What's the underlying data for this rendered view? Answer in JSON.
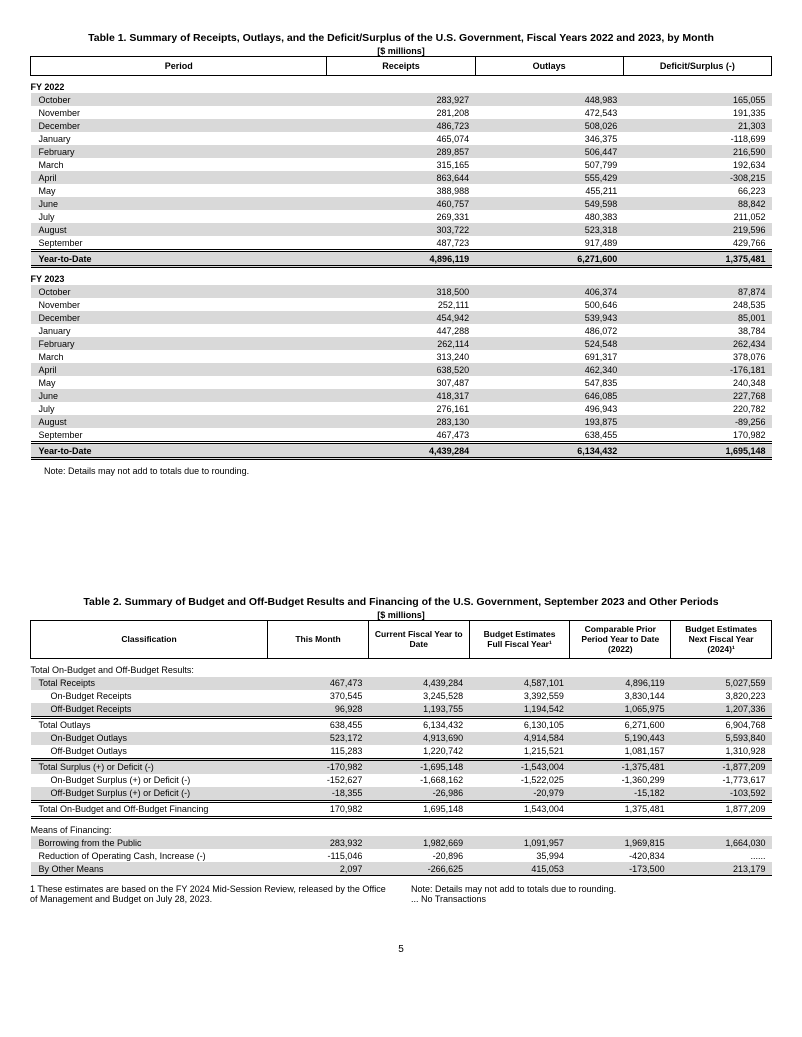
{
  "page_number": "5",
  "table1": {
    "title": "Table 1. Summary of Receipts, Outlays, and the Deficit/Surplus of the U.S. Government, Fiscal Years 2022 and 2023, by Month",
    "units": "[$ millions]",
    "columns": [
      "Period",
      "Receipts",
      "Outlays",
      "Deficit/Surplus (-)"
    ],
    "fy2022_label": "FY 2022",
    "fy2022_rows": [
      {
        "label": "October",
        "r": "283,927",
        "o": "448,983",
        "d": "165,055",
        "shade": true
      },
      {
        "label": "November",
        "r": "281,208",
        "o": "472,543",
        "d": "191,335",
        "shade": false
      },
      {
        "label": "December",
        "r": "486,723",
        "o": "508,026",
        "d": "21,303",
        "shade": true
      },
      {
        "label": "January",
        "r": "465,074",
        "o": "346,375",
        "d": "-118,699",
        "shade": false
      },
      {
        "label": "February",
        "r": "289,857",
        "o": "506,447",
        "d": "216,590",
        "shade": true
      },
      {
        "label": "March",
        "r": "315,165",
        "o": "507,799",
        "d": "192,634",
        "shade": false
      },
      {
        "label": "April",
        "r": "863,644",
        "o": "555,429",
        "d": "-308,215",
        "shade": true
      },
      {
        "label": "May",
        "r": "388,988",
        "o": "455,211",
        "d": "66,223",
        "shade": false
      },
      {
        "label": "June",
        "r": "460,757",
        "o": "549,598",
        "d": "88,842",
        "shade": true
      },
      {
        "label": "July",
        "r": "269,331",
        "o": "480,383",
        "d": "211,052",
        "shade": false
      },
      {
        "label": "August",
        "r": "303,722",
        "o": "523,318",
        "d": "219,596",
        "shade": true
      },
      {
        "label": "September",
        "r": "487,723",
        "o": "917,489",
        "d": "429,766",
        "shade": false
      }
    ],
    "fy2022_ytd": {
      "label": "Year-to-Date",
      "r": "4,896,119",
      "o": "6,271,600",
      "d": "1,375,481"
    },
    "fy2023_label": "FY 2023",
    "fy2023_rows": [
      {
        "label": "October",
        "r": "318,500",
        "o": "406,374",
        "d": "87,874",
        "shade": true
      },
      {
        "label": "November",
        "r": "252,111",
        "o": "500,646",
        "d": "248,535",
        "shade": false
      },
      {
        "label": "December",
        "r": "454,942",
        "o": "539,943",
        "d": "85,001",
        "shade": true
      },
      {
        "label": "January",
        "r": "447,288",
        "o": "486,072",
        "d": "38,784",
        "shade": false
      },
      {
        "label": "February",
        "r": "262,114",
        "o": "524,548",
        "d": "262,434",
        "shade": true
      },
      {
        "label": "March",
        "r": "313,240",
        "o": "691,317",
        "d": "378,076",
        "shade": false
      },
      {
        "label": "April",
        "r": "638,520",
        "o": "462,340",
        "d": "-176,181",
        "shade": true
      },
      {
        "label": "May",
        "r": "307,487",
        "o": "547,835",
        "d": "240,348",
        "shade": false
      },
      {
        "label": "June",
        "r": "418,317",
        "o": "646,085",
        "d": "227,768",
        "shade": true
      },
      {
        "label": "July",
        "r": "276,161",
        "o": "496,943",
        "d": "220,782",
        "shade": false
      },
      {
        "label": "August",
        "r": "283,130",
        "o": "193,875",
        "d": "-89,256",
        "shade": true
      },
      {
        "label": "September",
        "r": "467,473",
        "o": "638,455",
        "d": "170,982",
        "shade": false
      }
    ],
    "fy2023_ytd": {
      "label": "Year-to-Date",
      "r": "4,439,284",
      "o": "6,134,432",
      "d": "1,695,148"
    },
    "note": "Note: Details may not add to totals due to rounding.",
    "col_widths_pct": [
      40,
      20,
      20,
      20
    ],
    "colors": {
      "header_border": "#000000",
      "shade": "#d9d9d9",
      "bg": "#ffffff",
      "text": "#000000"
    }
  },
  "table2": {
    "title": "Table 2. Summary of Budget and Off-Budget Results and Financing of the U.S. Government, September 2023 and Other Periods",
    "units": "[$ millions]",
    "columns": [
      "Classification",
      "This Month",
      "Current Fiscal Year to Date",
      "Budget Estimates Full Fiscal Year¹",
      "Comparable Prior Period Year to Date (2022)",
      "Budget Estimates Next Fiscal Year (2024)¹"
    ],
    "section1_label": "Total On-Budget and Off-Budget Results:",
    "rows_a": [
      {
        "label": "Total Receipts",
        "indent": false,
        "c": [
          "467,473",
          "4,439,284",
          "4,587,101",
          "4,896,119",
          "5,027,559"
        ],
        "shade": true
      },
      {
        "label": "On-Budget Receipts",
        "indent": true,
        "c": [
          "370,545",
          "3,245,528",
          "3,392,559",
          "3,830,144",
          "3,820,223"
        ],
        "shade": false
      },
      {
        "label": "Off-Budget Receipts",
        "indent": true,
        "c": [
          "96,928",
          "1,193,755",
          "1,194,542",
          "1,065,975",
          "1,207,336"
        ],
        "shade": true
      }
    ],
    "rows_b": [
      {
        "label": "Total Outlays",
        "indent": false,
        "c": [
          "638,455",
          "6,134,432",
          "6,130,105",
          "6,271,600",
          "6,904,768"
        ],
        "shade": false
      },
      {
        "label": "On-Budget Outlays",
        "indent": true,
        "c": [
          "523,172",
          "4,913,690",
          "4,914,584",
          "5,190,443",
          "5,593,840"
        ],
        "shade": true
      },
      {
        "label": "Off-Budget Outlays",
        "indent": true,
        "c": [
          "115,283",
          "1,220,742",
          "1,215,521",
          "1,081,157",
          "1,310,928"
        ],
        "shade": false
      }
    ],
    "rows_c": [
      {
        "label": "Total Surplus (+) or Deficit (-)",
        "indent": false,
        "c": [
          "-170,982",
          "-1,695,148",
          "-1,543,004",
          "-1,375,481",
          "-1,877,209"
        ],
        "shade": true
      },
      {
        "label": "On-Budget Surplus (+) or Deficit (-)",
        "indent": true,
        "c": [
          "-152,627",
          "-1,668,162",
          "-1,522,025",
          "-1,360,299",
          "-1,773,617"
        ],
        "shade": false
      },
      {
        "label": "Off-Budget Surplus (+) or Deficit (-)",
        "indent": true,
        "c": [
          "-18,355",
          "-26,986",
          "-20,979",
          "-15,182",
          "-103,592"
        ],
        "shade": true
      }
    ],
    "row_financing_total": {
      "label": "Total On-Budget and Off-Budget Financing",
      "indent": false,
      "c": [
        "170,982",
        "1,695,148",
        "1,543,004",
        "1,375,481",
        "1,877,209"
      ],
      "shade": false
    },
    "section2_label": "Means of Financing:",
    "rows_d": [
      {
        "label": "Borrowing from the Public",
        "indent": false,
        "c": [
          "283,932",
          "1,982,669",
          "1,091,957",
          "1,969,815",
          "1,664,030"
        ],
        "shade": true
      },
      {
        "label": "Reduction of Operating Cash, Increase (-)",
        "indent": false,
        "c": [
          "-115,046",
          "-20,896",
          "35,994",
          "-420,834",
          "......"
        ],
        "shade": false
      },
      {
        "label": "By Other Means",
        "indent": false,
        "c": [
          "2,097",
          "-266,625",
          "415,053",
          "-173,500",
          "213,179"
        ],
        "shade": true
      }
    ],
    "footnote_left": "1 These estimates are based on the FY 2024 Mid-Session Review, released by the Office of Management and Budget on July 28, 2023.",
    "footnote_right_1": "Note: Details may not add to totals due to rounding.",
    "footnote_right_2": "... No Transactions",
    "col_widths_pct": [
      32,
      13.6,
      13.6,
      13.6,
      13.6,
      13.6
    ],
    "colors": {
      "header_border": "#000000",
      "shade": "#d9d9d9",
      "bg": "#ffffff",
      "text": "#000000"
    }
  }
}
